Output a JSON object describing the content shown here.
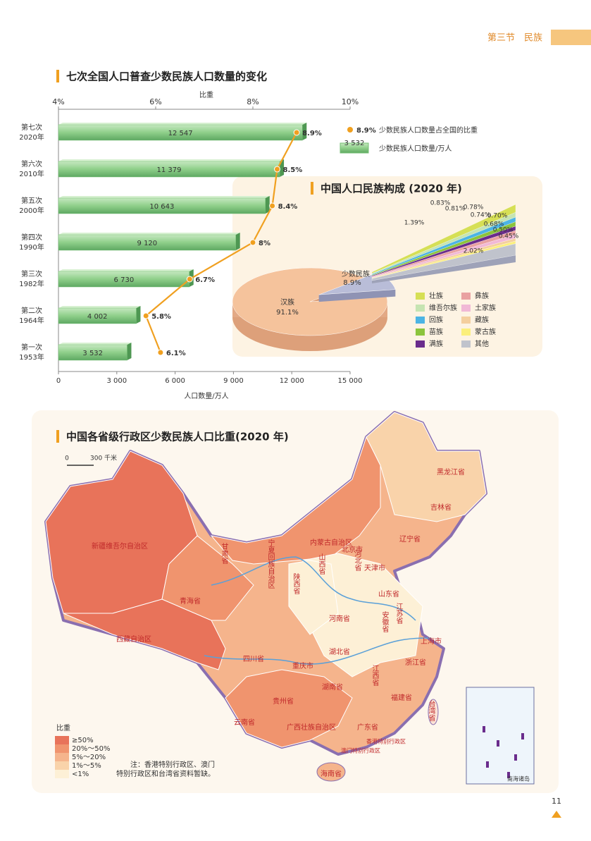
{
  "header": {
    "section": "第三节　民族",
    "page": "11"
  },
  "chart_data": [
    {
      "type": "bar",
      "orientation": "horizontal",
      "title": "七次全国人口普查少数民族人口数量的变化",
      "categories": [
        "第七次",
        "第六次",
        "第五次",
        "第四次",
        "第三次",
        "第二次",
        "第一次"
      ],
      "years": [
        "2020年",
        "2010年",
        "2000年",
        "1990年",
        "1982年",
        "1964年",
        "1953年"
      ],
      "xlabel": "人口数量/万人",
      "x2label": "比重",
      "xlim": [
        0,
        15000
      ],
      "xticks": [
        0,
        {
          "value": 3000,
          "label": "3 000"
        },
        {
          "value": 6000,
          "label": "6 000"
        },
        {
          "value": 9000,
          "label": "9 000"
        },
        {
          "value": 12000,
          "label": "12 000"
        },
        {
          "value": 15000,
          "label": "15 000"
        }
      ],
      "x2lim": [
        4,
        10
      ],
      "x2ticks": [
        {
          "value": 4,
          "label": "4%"
        },
        {
          "value": 6,
          "label": "6%"
        },
        {
          "value": 8,
          "label": "8%"
        },
        {
          "value": 10,
          "label": "10%"
        }
      ],
      "series": [
        {
          "name": "少数民族人口数量/万人",
          "color": "#74bf74",
          "values": [
            12547,
            11379,
            10643,
            9120,
            6730,
            4002,
            3532
          ],
          "value_labels": [
            "12 547",
            "11 379",
            "10 643",
            "9 120",
            "6 730",
            "4 002",
            "3 532"
          ]
        },
        {
          "name": "少数民族人口数量占全国的比重",
          "type": "line",
          "axis": "x2",
          "color": "#f0a020",
          "values": [
            8.9,
            8.5,
            8.4,
            8,
            6.7,
            5.8,
            6.1
          ],
          "value_labels": [
            "8.9%",
            "8.5%",
            "8.4%",
            "8%",
            "6.7%",
            "5.8%",
            "6.1%"
          ]
        }
      ]
    },
    {
      "type": "pie",
      "title": "中国人口民族构成 (2020 年)",
      "categories": [
        "汉族",
        "少数民族"
      ],
      "values": [
        91.1,
        8.9
      ],
      "value_labels": [
        "91.1%",
        "8.9%"
      ],
      "colors": [
        "#f5c39c",
        "#b9bdd8"
      ],
      "breakdown": {
        "categories": [
          "壮族",
          "维吾尔族",
          "回族",
          "苗族",
          "满族",
          "彝族",
          "土家族",
          "藏族",
          "蒙古族",
          "其他"
        ],
        "values": [
          1.39,
          0.83,
          0.81,
          0.78,
          0.74,
          0.7,
          0.68,
          0.5,
          0.45,
          2.02
        ],
        "value_labels": [
          "1.39%",
          "0.83%",
          "0.81%",
          "0.78%",
          "0.74%",
          "0.70%",
          "0.68%",
          "0.50%",
          "0.45%",
          "2.02%"
        ],
        "colors": [
          "#d6df55",
          "#c6e4b2",
          "#4cb4e4",
          "#8cc43c",
          "#6a2c8c",
          "#e9a1a1",
          "#f1b8d6",
          "#f4cf9e",
          "#fbef7c",
          "#c0c3cc"
        ]
      }
    }
  ],
  "map": {
    "title": "中国各省级行政区少数民族人口比重(2020 年)",
    "scale": [
      "0",
      "300 千米"
    ],
    "legend": {
      "title": "比重",
      "labels": [
        "≥50%",
        "20%～50%",
        "5%～20%",
        "1%～5%",
        "<1%"
      ],
      "colors": [
        "#e8735a",
        "#f0946e",
        "#f5b48c",
        "#f9d3aa",
        "#fdf0d6"
      ]
    },
    "note": [
      "注：香港特别行政区、澳门",
      "特别行政区和台湾省资料暂缺。"
    ],
    "inset": "南海诸岛",
    "provinces": [
      {
        "name": "新疆维吾尔自治区",
        "level": 0
      },
      {
        "name": "西藏自治区",
        "level": 0
      },
      {
        "name": "青海省",
        "level": 1
      },
      {
        "name": "甘肃省",
        "level": 2
      },
      {
        "name": "内蒙古自治区",
        "level": 1
      },
      {
        "name": "宁夏回族自治区",
        "level": 1
      },
      {
        "name": "陕西省",
        "level": 4
      },
      {
        "name": "山西省",
        "level": 4
      },
      {
        "name": "河北省",
        "level": 3
      },
      {
        "name": "北京市",
        "level": 3
      },
      {
        "name": "天津市",
        "level": 3
      },
      {
        "name": "辽宁省",
        "level": 2
      },
      {
        "name": "吉林省",
        "level": 3
      },
      {
        "name": "黑龙江省",
        "level": 3
      },
      {
        "name": "山东省",
        "level": 4
      },
      {
        "name": "河南省",
        "level": 3
      },
      {
        "name": "江苏省",
        "level": 4
      },
      {
        "name": "安徽省",
        "level": 4
      },
      {
        "name": "上海市",
        "level": 3
      },
      {
        "name": "湖北省",
        "level": 3
      },
      {
        "name": "浙江省",
        "level": 3
      },
      {
        "name": "四川省",
        "level": 2
      },
      {
        "name": "重庆市",
        "level": 2
      },
      {
        "name": "湖南省",
        "level": 2
      },
      {
        "name": "江西省",
        "level": 4
      },
      {
        "name": "福建省",
        "level": 3
      },
      {
        "name": "贵州省",
        "level": 1
      },
      {
        "name": "云南省",
        "level": 1
      },
      {
        "name": "广西壮族自治区",
        "level": 1
      },
      {
        "name": "广东省",
        "level": 3
      },
      {
        "name": "海南省",
        "level": 2
      },
      {
        "name": "台湾省",
        "level": null
      },
      {
        "name": "香港特别行政区",
        "level": null
      },
      {
        "name": "澳门特别行政区",
        "level": null
      }
    ]
  }
}
